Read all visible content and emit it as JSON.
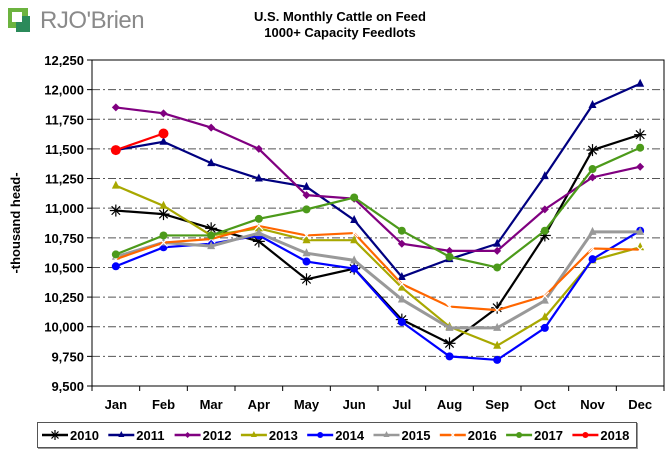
{
  "brand": {
    "logo_text": "RJO'Brien",
    "logo_colors": [
      "#6cb33f",
      "#2b8a5a"
    ]
  },
  "chart_data": {
    "type": "line",
    "title": "U.S. Monthly Cattle on Feed",
    "subtitle": "1000+ Capacity Feedlots",
    "xlabel": "",
    "ylabel": "-thousand head-",
    "ylim": [
      9500,
      12250
    ],
    "yticks": [
      9500,
      9750,
      10000,
      10250,
      10500,
      10750,
      11000,
      11250,
      11500,
      11750,
      12000,
      12250
    ],
    "ytick_labels": [
      "9,500",
      "9,750",
      "10,000",
      "10,250",
      "10,500",
      "10,750",
      "11,000",
      "11,250",
      "11,500",
      "11,750",
      "12,000",
      "12,250"
    ],
    "grid": "horizontal dash-dot",
    "legend_position": "bottom",
    "categories": [
      "Jan",
      "Feb",
      "Mar",
      "Apr",
      "May",
      "Jun",
      "Jul",
      "Aug",
      "Sep",
      "Oct",
      "Nov",
      "Dec"
    ],
    "series": [
      {
        "name": "2010",
        "color": "#000000",
        "marker": "star",
        "values": [
          10980,
          10950,
          10830,
          10720,
          10400,
          10490,
          10060,
          9860,
          10160,
          10770,
          11490,
          11620
        ]
      },
      {
        "name": "2011",
        "color": "#000080",
        "marker": "triangle",
        "values": [
          11490,
          11560,
          11380,
          11250,
          11180,
          10900,
          10420,
          10570,
          10700,
          11270,
          11870,
          12050
        ]
      },
      {
        "name": "2012",
        "color": "#800080",
        "marker": "diamond",
        "values": [
          11850,
          11800,
          11680,
          11500,
          11110,
          11080,
          10700,
          10640,
          10640,
          10990,
          11260,
          11350
        ]
      },
      {
        "name": "2013",
        "color": "#a8a800",
        "marker": "triangle",
        "values": [
          11190,
          11020,
          10770,
          10830,
          10730,
          10730,
          10330,
          10000,
          9840,
          10080,
          10560,
          10670
        ]
      },
      {
        "name": "2014",
        "color": "#0000ff",
        "marker": "circle",
        "values": [
          10510,
          10670,
          10700,
          10770,
          10550,
          10490,
          10040,
          9750,
          9720,
          9990,
          10570,
          10810
        ]
      },
      {
        "name": "2015",
        "color": "#999999",
        "marker": "triangle",
        "values": [
          10590,
          10710,
          10680,
          10790,
          10620,
          10560,
          10230,
          9990,
          9990,
          10220,
          10800,
          10800
        ]
      },
      {
        "name": "2016",
        "color": "#ff6600",
        "marker": "x",
        "values": [
          10570,
          10710,
          10740,
          10850,
          10770,
          10790,
          10360,
          10170,
          10140,
          10260,
          10660,
          10650
        ]
      },
      {
        "name": "2017",
        "color": "#4c9a1a",
        "marker": "circle",
        "values": [
          10610,
          10770,
          10770,
          10910,
          10990,
          11090,
          10810,
          10590,
          10500,
          10810,
          11330,
          11510
        ]
      },
      {
        "name": "2018",
        "color": "#ff0000",
        "marker": "circle",
        "values": [
          11490,
          11630
        ]
      }
    ]
  }
}
